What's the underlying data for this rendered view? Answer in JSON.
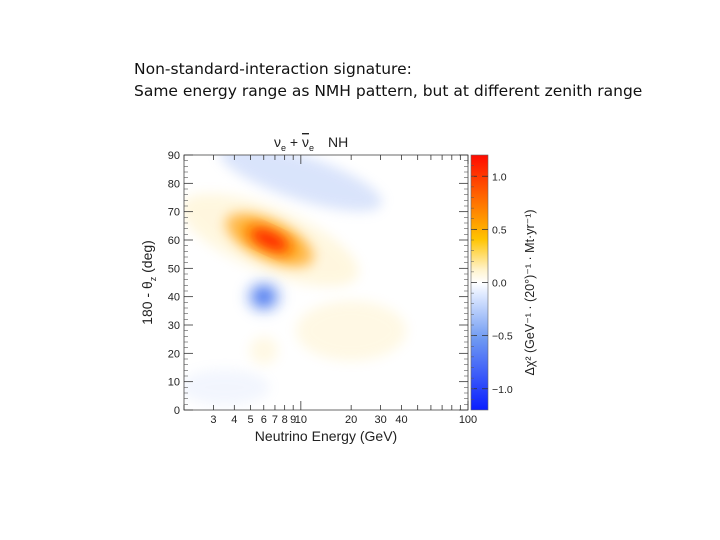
{
  "slide": {
    "caption_line1": "Non-standard-interaction signature:",
    "caption_line2": "Same energy range as NMH pattern, but at different zenith range"
  },
  "chart_data": {
    "type": "heatmap",
    "title": "νe + ν̄e   NH",
    "title_channel": "ν",
    "title_sub_e": "e",
    "title_plus": " + ",
    "title_bar": "ν",
    "title_ordering": "NH",
    "xlabel": "Neutrino Energy (GeV)",
    "ylabel": "180 - θz (deg)",
    "ylabel_prefix": "180 - θ",
    "ylabel_sub": "z",
    "ylabel_suffix": " (deg)",
    "xscale": "log",
    "xlim": [
      2,
      100
    ],
    "ylim": [
      0,
      90
    ],
    "x_ticks": [
      3,
      4,
      5,
      6,
      7,
      8,
      9,
      10,
      20,
      30,
      40,
      100
    ],
    "x_tick_labels": [
      "3",
      "4",
      "5",
      "6",
      "7",
      "8",
      "9",
      "10",
      "20",
      "30",
      "40",
      "100"
    ],
    "y_ticks": [
      0,
      10,
      20,
      30,
      40,
      50,
      60,
      70,
      80,
      90
    ],
    "y_tick_labels": [
      "0",
      "10",
      "20",
      "30",
      "40",
      "50",
      "60",
      "70",
      "80",
      "90"
    ],
    "colorbar": {
      "label": "Δχ² (GeV⁻¹ · (20°)⁻¹ · Mt·yr⁻¹)",
      "range": [
        -1.2,
        1.2
      ],
      "ticks": [
        1.0,
        0.5,
        0.0,
        -0.5,
        -1.0
      ],
      "tick_labels": [
        "1.0",
        "0.5",
        "0.0",
        "−0.5",
        "−1.0"
      ]
    },
    "features": [
      {
        "name": "positive-peak",
        "energy": 6.5,
        "zenith": 60,
        "value": 1.0
      },
      {
        "name": "negative-spot",
        "energy": 6.0,
        "zenith": 40,
        "value": -0.6
      },
      {
        "name": "negative-band-top",
        "energy": 10,
        "zenith": 82,
        "value": -0.3
      },
      {
        "name": "positive-band-low",
        "energy": 20,
        "zenith": 28,
        "value": 0.15
      },
      {
        "name": "positive-spot-small",
        "energy": 6.0,
        "zenith": 21,
        "value": 0.15
      },
      {
        "name": "negative-bottom",
        "energy": 3.5,
        "zenith": 8,
        "value": -0.1
      }
    ]
  }
}
